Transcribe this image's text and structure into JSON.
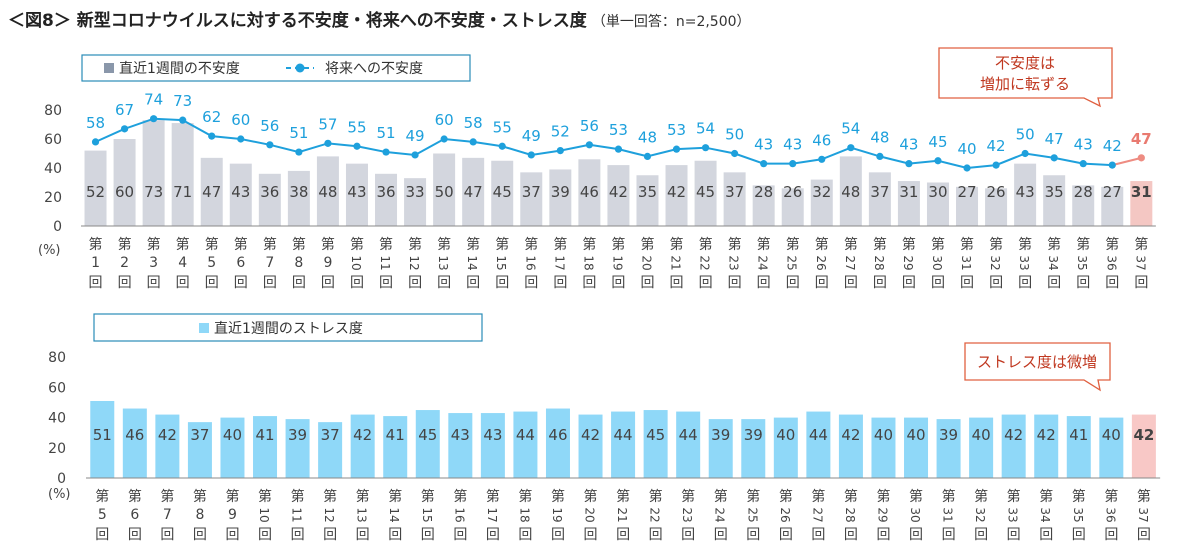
{
  "header": {
    "title": "＜図8＞ 新型コロナウイルスに対する不安度・将来への不安度・ストレス度",
    "subtitle": "（単一回答：n=2,500）"
  },
  "colors": {
    "bar_gray": "#d3d6de",
    "bar_gray_highlight": "#f4c7c3",
    "line_blue": "#1ea0dc",
    "line_highlight": "#ee8c82",
    "label_blue": "#1ea0dc",
    "label_highlight": "#e97a70",
    "bar_stress": "#8fd8f8",
    "bar_stress_highlight": "#f8c8c6",
    "legend_border": "#2a8cb8",
    "callout_border": "#e06040",
    "callout_text": "#c03820",
    "axis": "#888888"
  },
  "chart_data": [
    {
      "type": "bar+line",
      "legend": {
        "bar_label": "直近1週間の不安度",
        "line_label": "将来への不安度"
      },
      "unit_label": "(%)",
      "y_ticks": [
        "0",
        "20",
        "40",
        "60",
        "80"
      ],
      "ylim": [
        0,
        80
      ],
      "start_round": 1,
      "categories": [
        [
          "第",
          "1",
          "回"
        ],
        [
          "第",
          "2",
          "回"
        ],
        [
          "第",
          "3",
          "回"
        ],
        [
          "第",
          "4",
          "回"
        ],
        [
          "第",
          "5",
          "回"
        ],
        [
          "第",
          "6",
          "回"
        ],
        [
          "第",
          "7",
          "回"
        ],
        [
          "第",
          "8",
          "回"
        ],
        [
          "第",
          "9",
          "回"
        ],
        [
          "第",
          "10",
          "回"
        ],
        [
          "第",
          "11",
          "回"
        ],
        [
          "第",
          "12",
          "回"
        ],
        [
          "第",
          "13",
          "回"
        ],
        [
          "第",
          "14",
          "回"
        ],
        [
          "第",
          "15",
          "回"
        ],
        [
          "第",
          "16",
          "回"
        ],
        [
          "第",
          "17",
          "回"
        ],
        [
          "第",
          "18",
          "回"
        ],
        [
          "第",
          "19",
          "回"
        ],
        [
          "第",
          "20",
          "回"
        ],
        [
          "第",
          "21",
          "回"
        ],
        [
          "第",
          "22",
          "回"
        ],
        [
          "第",
          "23",
          "回"
        ],
        [
          "第",
          "24",
          "回"
        ],
        [
          "第",
          "25",
          "回"
        ],
        [
          "第",
          "26",
          "回"
        ],
        [
          "第",
          "27",
          "回"
        ],
        [
          "第",
          "28",
          "回"
        ],
        [
          "第",
          "29",
          "回"
        ],
        [
          "第",
          "30",
          "回"
        ],
        [
          "第",
          "31",
          "回"
        ],
        [
          "第",
          "32",
          "回"
        ],
        [
          "第",
          "33",
          "回"
        ],
        [
          "第",
          "34",
          "回"
        ],
        [
          "第",
          "35",
          "回"
        ],
        [
          "第",
          "36",
          "回"
        ],
        [
          "第",
          "37",
          "回"
        ]
      ],
      "bar_values": [
        52,
        60,
        73,
        71,
        47,
        43,
        36,
        38,
        48,
        43,
        36,
        33,
        50,
        47,
        45,
        37,
        39,
        46,
        42,
        35,
        42,
        45,
        37,
        28,
        26,
        32,
        48,
        37,
        31,
        30,
        27,
        26,
        43,
        35,
        28,
        27,
        31
      ],
      "line_values": [
        58,
        67,
        74,
        73,
        62,
        60,
        56,
        51,
        57,
        55,
        51,
        49,
        60,
        58,
        55,
        49,
        52,
        56,
        53,
        48,
        53,
        54,
        50,
        43,
        43,
        46,
        54,
        48,
        43,
        45,
        40,
        42,
        50,
        47,
        43,
        42,
        47
      ],
      "callout": [
        "不安度は",
        "増加に転ずる"
      ]
    },
    {
      "type": "bar",
      "legend": {
        "bar_label": "直近1週間のストレス度"
      },
      "unit_label": "(%)",
      "y_ticks": [
        "0",
        "20",
        "40",
        "60",
        "80"
      ],
      "ylim": [
        0,
        80
      ],
      "categories": [
        [
          "第",
          "5",
          "回"
        ],
        [
          "第",
          "6",
          "回"
        ],
        [
          "第",
          "7",
          "回"
        ],
        [
          "第",
          "8",
          "回"
        ],
        [
          "第",
          "9",
          "回"
        ],
        [
          "第",
          "10",
          "回"
        ],
        [
          "第",
          "11",
          "回"
        ],
        [
          "第",
          "12",
          "回"
        ],
        [
          "第",
          "13",
          "回"
        ],
        [
          "第",
          "14",
          "回"
        ],
        [
          "第",
          "15",
          "回"
        ],
        [
          "第",
          "16",
          "回"
        ],
        [
          "第",
          "17",
          "回"
        ],
        [
          "第",
          "18",
          "回"
        ],
        [
          "第",
          "19",
          "回"
        ],
        [
          "第",
          "20",
          "回"
        ],
        [
          "第",
          "21",
          "回"
        ],
        [
          "第",
          "22",
          "回"
        ],
        [
          "第",
          "23",
          "回"
        ],
        [
          "第",
          "24",
          "回"
        ],
        [
          "第",
          "25",
          "回"
        ],
        [
          "第",
          "26",
          "回"
        ],
        [
          "第",
          "27",
          "回"
        ],
        [
          "第",
          "28",
          "回"
        ],
        [
          "第",
          "29",
          "回"
        ],
        [
          "第",
          "30",
          "回"
        ],
        [
          "第",
          "31",
          "回"
        ],
        [
          "第",
          "32",
          "回"
        ],
        [
          "第",
          "33",
          "回"
        ],
        [
          "第",
          "34",
          "回"
        ],
        [
          "第",
          "35",
          "回"
        ],
        [
          "第",
          "36",
          "回"
        ],
        [
          "第",
          "37",
          "回"
        ]
      ],
      "bar_values": [
        51,
        46,
        42,
        37,
        40,
        41,
        39,
        37,
        42,
        41,
        45,
        43,
        43,
        44,
        46,
        42,
        44,
        45,
        44,
        39,
        39,
        40,
        44,
        42,
        40,
        40,
        39,
        40,
        42,
        42,
        41,
        40,
        42
      ],
      "callout": [
        "ストレス度は微増"
      ]
    }
  ]
}
